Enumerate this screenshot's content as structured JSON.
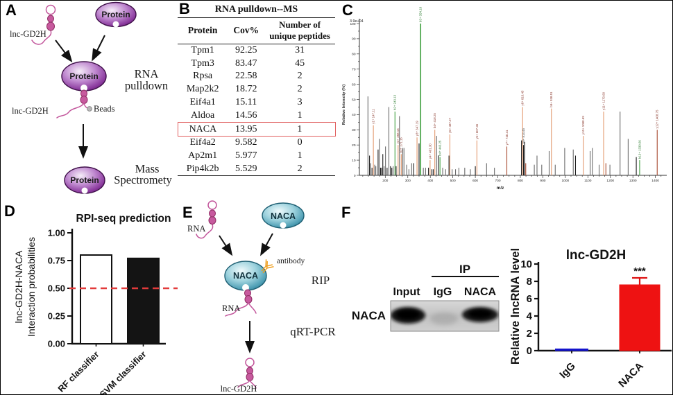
{
  "panels": {
    "a": "A",
    "b": "B",
    "c": "C",
    "d": "D",
    "e": "E",
    "f": "F"
  },
  "panel_a": {
    "lnc_top": "lnc-GD2H",
    "protein_top": "Protein",
    "protein_mid": "Protein",
    "lnc_mid": "lnc-GD2H",
    "beads": "Beads",
    "step1_line1": "RNA",
    "step1_line2": "pulldown",
    "protein_bottom": "Protein",
    "step2_line1": "Mass",
    "step2_line2": "Spectromety"
  },
  "panel_b": {
    "title": "RNA pulldown--MS",
    "col_protein": "Protein",
    "col_cov": "Cov%",
    "col_peptides_line1": "Number of",
    "col_peptides_line2": "unique peptides",
    "rows": [
      [
        "Tpm1",
        "92.25",
        "31"
      ],
      [
        "Tpm3",
        "83.47",
        "45"
      ],
      [
        "Rpsa",
        "22.58",
        "2"
      ],
      [
        "Map2k2",
        "18.72",
        "2"
      ],
      [
        "Eif4a1",
        "15.11",
        "3"
      ],
      [
        "Aldoa",
        "14.56",
        "1"
      ],
      [
        "NACA",
        "13.95",
        "1"
      ],
      [
        "Eif4a2",
        "9.582",
        "0"
      ],
      [
        "Ap2m1",
        "5.977",
        "1"
      ],
      [
        "Pip4k2b",
        "5.529",
        "2"
      ]
    ],
    "highlight_protein": "NACA",
    "highlight_color": "#e05b5b"
  },
  "panel_e": {
    "rna_top": "RNA",
    "naca_top": "NACA",
    "naca_mid": "NACA",
    "antibody": "antibody",
    "rna_mid": "RNA",
    "step1": "RIP",
    "step2": "qRT-PCR",
    "lnc_bottom": "lnc-GD2H"
  },
  "panel_f": {
    "ip_label": "IP",
    "lanes": [
      "Input",
      "IgG",
      "NACA"
    ],
    "blot_row_label": "NACA"
  },
  "chart_data": [
    {
      "id": "mass-spectrum",
      "type": "bar",
      "panel": "C",
      "title": "",
      "xlabel": "m/z",
      "ylabel": "Relative Intensity (%)",
      "top_annotation": "3.9e+04",
      "xlim": [
        85,
        1435
      ],
      "ylim": [
        0,
        100
      ],
      "x_tick_major": 100,
      "x_tick_minor": 25,
      "y_tick_major": 10,
      "y_tick_minor": 5,
      "palette": {
        "g": "#6a6a6a",
        "k": "#1c1c1c",
        "o": "#e3996e",
        "n": "#3fa03f",
        "r": "#a84a30"
      },
      "label_palette": {
        "g": "#555555",
        "k": "#444444",
        "o": "#8b3a2e",
        "n": "#2e7d32",
        "r": "#8b3a2e"
      },
      "peaks": [
        [
          123,
          52,
          "g"
        ],
        [
          130,
          13,
          "k"
        ],
        [
          135,
          8,
          "g"
        ],
        [
          141,
          5,
          "k"
        ],
        [
          147,
          33,
          "o",
          "y1+ 147.11"
        ],
        [
          153,
          7,
          "g"
        ],
        [
          158,
          6,
          "g"
        ],
        [
          168,
          17,
          "k"
        ],
        [
          174,
          24,
          "g"
        ],
        [
          179,
          5,
          "k"
        ],
        [
          184,
          5,
          "k"
        ],
        [
          189,
          14,
          "k"
        ],
        [
          195,
          6,
          "g"
        ],
        [
          201,
          19,
          "g"
        ],
        [
          208,
          5,
          "k"
        ],
        [
          216,
          45,
          "g"
        ],
        [
          223,
          6,
          "k"
        ],
        [
          229,
          5,
          "k"
        ],
        [
          235,
          6,
          "g"
        ],
        [
          243,
          42,
          "n",
          "b2+ 243.13"
        ],
        [
          248,
          6,
          "k"
        ],
        [
          257,
          20,
          "o",
          "y2+ 258.15"
        ],
        [
          263,
          39,
          "g"
        ],
        [
          271,
          14,
          "o",
          "b2+ 271.15"
        ],
        [
          277,
          18,
          "g"
        ],
        [
          283,
          18,
          "g"
        ],
        [
          295,
          7,
          "g"
        ],
        [
          305,
          4,
          "g"
        ],
        [
          317,
          8,
          "g"
        ],
        [
          326,
          8,
          "k"
        ],
        [
          341,
          25,
          "o",
          "y3+ 347.19"
        ],
        [
          350,
          21,
          "k"
        ],
        [
          357,
          100,
          "n",
          "b3+ 354.18"
        ],
        [
          369,
          5,
          "g"
        ],
        [
          379,
          5,
          "g"
        ],
        [
          392,
          5,
          "k"
        ],
        [
          399,
          10,
          "o",
          "y4+ 401.30"
        ],
        [
          407,
          4,
          "k"
        ],
        [
          413,
          4,
          "k"
        ],
        [
          420,
          30,
          "o",
          "b4+ 418.25"
        ],
        [
          428,
          26,
          "g"
        ],
        [
          436,
          13,
          "k"
        ],
        [
          443,
          12,
          "n",
          "b4+ 443.25"
        ],
        [
          455,
          5,
          "g"
        ],
        [
          468,
          4,
          "g"
        ],
        [
          483,
          13,
          "k"
        ],
        [
          487,
          27,
          "o",
          "y5+ 487.27"
        ],
        [
          497,
          4,
          "g"
        ],
        [
          512,
          4,
          "g"
        ],
        [
          527,
          5,
          "g"
        ],
        [
          553,
          5,
          "g"
        ],
        [
          578,
          4,
          "g"
        ],
        [
          600,
          6,
          "k"
        ],
        [
          607,
          23,
          "o",
          "y6+ 607.36"
        ],
        [
          650,
          8,
          "g"
        ],
        [
          685,
          5,
          "g"
        ],
        [
          740,
          19,
          "r",
          "y7+ 740.41"
        ],
        [
          805,
          23,
          "k"
        ],
        [
          810,
          45,
          "o",
          "y8+ 810.45"
        ],
        [
          814,
          20,
          "k",
          "b8+ 814.45"
        ],
        [
          819,
          22,
          "k"
        ],
        [
          824,
          8,
          "r"
        ],
        [
          862,
          7,
          "g"
        ],
        [
          874,
          13,
          "g"
        ],
        [
          895,
          7,
          "g"
        ],
        [
          928,
          16,
          "g"
        ],
        [
          938,
          44,
          "o",
          "b9+ 938.51"
        ],
        [
          955,
          7,
          "g"
        ],
        [
          997,
          18,
          "g"
        ],
        [
          1035,
          17,
          "g"
        ],
        [
          1045,
          13,
          "k"
        ],
        [
          1080,
          26,
          "o",
          "y10+ 1080.59"
        ],
        [
          1110,
          16,
          "g"
        ],
        [
          1120,
          18,
          "g"
        ],
        [
          1150,
          7,
          "g"
        ],
        [
          1170,
          42,
          "o",
          "y11+ 1170.60"
        ],
        [
          1180,
          8,
          "r"
        ],
        [
          1198,
          7,
          "g"
        ],
        [
          1243,
          42,
          "g"
        ],
        [
          1279,
          24,
          "g"
        ],
        [
          1315,
          12,
          "k"
        ],
        [
          1330,
          10,
          "n",
          "b13+ 1330.66"
        ],
        [
          1408,
          30,
          "r",
          "y12+ 1408.75"
        ]
      ]
    },
    {
      "id": "rpi-seq-prediction",
      "type": "bar",
      "panel": "D",
      "title": "RPI-seq prediction",
      "ylabel_lines": [
        "lnc-GD2H-NACA",
        "Interaction probabilities"
      ],
      "categories": [
        "RF classifier",
        "SVM classifier"
      ],
      "values": [
        0.8,
        0.77
      ],
      "bar_fills": [
        "#ffffff",
        "#141414"
      ],
      "threshold": 0.5,
      "threshold_color": "#e23b3b",
      "ylim": [
        0,
        1.0
      ],
      "y_ticks": [
        "0.00",
        "0.25",
        "0.50",
        "0.75",
        "1.00"
      ],
      "grid": false,
      "legend": false
    },
    {
      "id": "rip-qrtpcr",
      "type": "bar",
      "panel": "F",
      "title": "lnc-GD2H",
      "ylabel": "Relative lncRNA level",
      "categories": [
        "IgG",
        "NACA"
      ],
      "values": [
        0.2,
        7.6
      ],
      "errors": [
        0,
        0.8
      ],
      "bar_fills": [
        "#1414cc",
        "#ee1212"
      ],
      "error_color": "#dd1111",
      "significance": {
        "label": "***",
        "on": "NACA"
      },
      "ylim": [
        0,
        10
      ],
      "y_ticks": [
        0,
        2,
        4,
        6,
        8,
        10
      ],
      "grid": false,
      "legend": false
    }
  ]
}
